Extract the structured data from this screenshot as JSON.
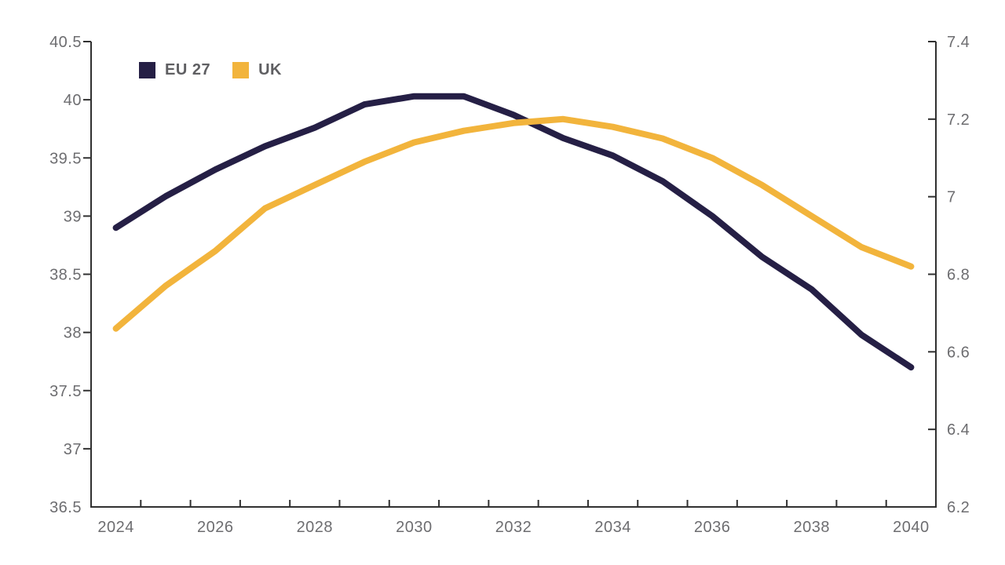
{
  "chart_data": {
    "type": "line",
    "title": "",
    "x": [
      2024,
      2025,
      2026,
      2027,
      2028,
      2029,
      2030,
      2031,
      2032,
      2033,
      2034,
      2035,
      2036,
      2037,
      2038,
      2039,
      2040
    ],
    "x_tick_labels": [
      "2024",
      "2026",
      "2028",
      "2030",
      "2032",
      "2034",
      "2036",
      "2038",
      "2040"
    ],
    "series": [
      {
        "name": "EU 27",
        "axis": "left",
        "color": "#251f45",
        "values": [
          38.9,
          39.17,
          39.4,
          39.6,
          39.76,
          39.96,
          40.03,
          40.03,
          39.87,
          39.67,
          39.52,
          39.3,
          39.0,
          38.65,
          38.37,
          37.98,
          37.7
        ]
      },
      {
        "name": "UK",
        "axis": "right",
        "color": "#f2b43c",
        "values": [
          6.66,
          6.77,
          6.86,
          6.97,
          7.03,
          7.09,
          7.14,
          7.17,
          7.19,
          7.2,
          7.18,
          7.15,
          7.1,
          7.03,
          6.95,
          6.87,
          6.82
        ]
      }
    ],
    "left_axis": {
      "min": 36.5,
      "max": 40.5,
      "tick_values": [
        36.5,
        37,
        37.5,
        38,
        38.5,
        39,
        39.5,
        40,
        40.5
      ],
      "tick_labels": [
        "36.5",
        "37",
        "37.5",
        "38",
        "38.5",
        "39",
        "39.5",
        "40",
        "40.5"
      ]
    },
    "right_axis": {
      "min": 6.2,
      "max": 7.4,
      "tick_values": [
        6.2,
        6.4,
        6.6,
        6.8,
        7,
        7.2,
        7.4
      ],
      "tick_labels": [
        "6.2",
        "6.4",
        "6.6",
        "6.8",
        "7",
        "7.2",
        "7.4"
      ]
    },
    "legend": {
      "position": "top-left"
    },
    "grid": false,
    "style": {
      "axis_color": "#303030",
      "tick_label_color": "#6d6d70",
      "legend_label_color": "#5f5f62",
      "background": "#ffffff"
    }
  }
}
